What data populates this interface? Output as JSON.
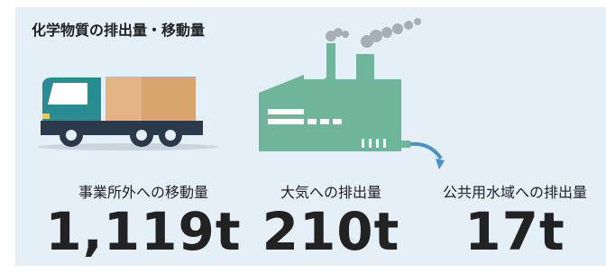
{
  "header": {
    "title": "化学物質の排出量・移動量"
  },
  "items": [
    {
      "label": "事業所外への移動量",
      "value": "1,119t"
    },
    {
      "label": "大気への排出量",
      "value": "210t"
    },
    {
      "label": "公共用水域への排出量",
      "value": "17t"
    }
  ]
}
